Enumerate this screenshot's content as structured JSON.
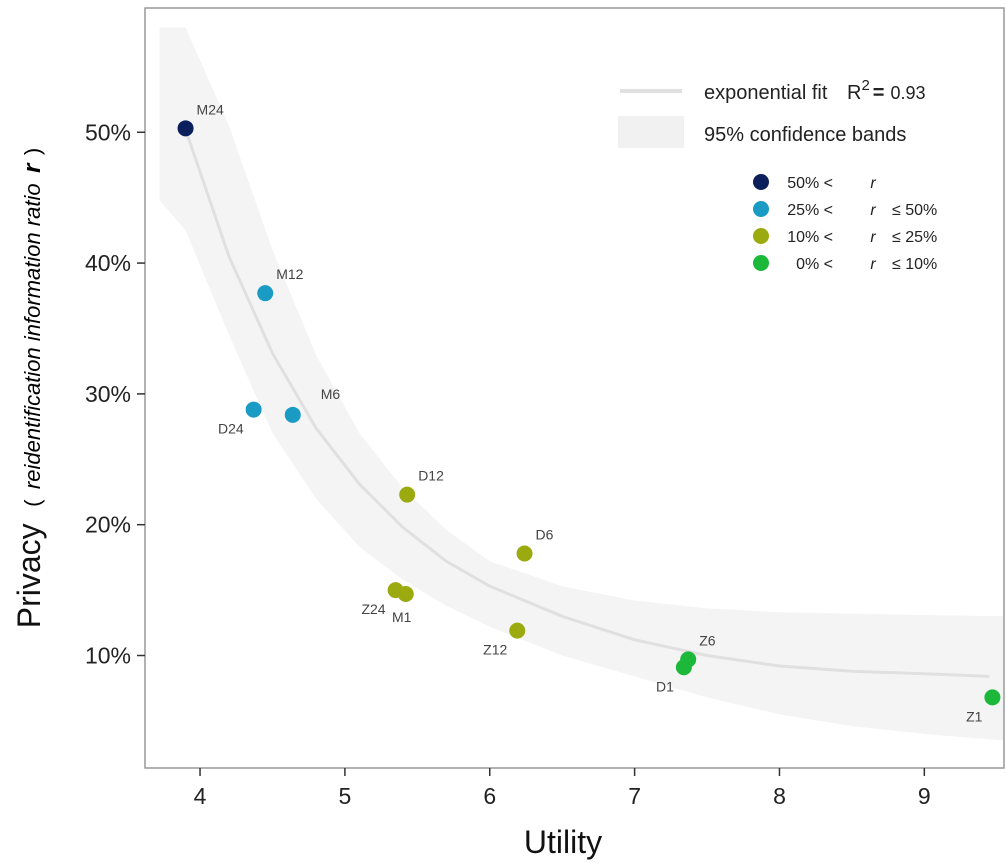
{
  "chart_data": {
    "type": "scatter",
    "title": "",
    "xlabel": "Utility",
    "ylabel_main": "Privacy",
    "ylabel_paren_open": "(",
    "ylabel_italic": "reidentification information ratio",
    "ylabel_bold_r": "r",
    "ylabel_paren_close": ")",
    "xlim": [
      3.62,
      9.55
    ],
    "ylim": [
      0.014,
      0.595
    ],
    "x_ticks": [
      4,
      5,
      6,
      7,
      8,
      9
    ],
    "x_tick_labels": [
      "4",
      "5",
      "6",
      "7",
      "8",
      "9"
    ],
    "y_ticks": [
      0.1,
      0.2,
      0.3,
      0.4,
      0.5
    ],
    "y_tick_labels": [
      "10%",
      "20%",
      "30%",
      "40%",
      "50%"
    ],
    "grid": false,
    "legend_position": "top-right",
    "fit": {
      "name": "exponential fit",
      "r2_label": "R",
      "r2_superscript": "2",
      "r2_equals": "=",
      "r2_value": "0.93",
      "color": "#e0e0e0",
      "x": [
        3.9,
        4.2,
        4.5,
        4.8,
        5.1,
        5.4,
        5.7,
        6.0,
        6.5,
        7.0,
        7.5,
        8.0,
        8.5,
        9.0,
        9.45
      ],
      "y": [
        0.502,
        0.405,
        0.331,
        0.274,
        0.231,
        0.198,
        0.172,
        0.153,
        0.13,
        0.112,
        0.1,
        0.092,
        0.088,
        0.086,
        0.084
      ]
    },
    "band": {
      "name": "95% confidence bands",
      "color": "#f4f4f4",
      "x": [
        3.72,
        3.9,
        4.2,
        4.5,
        4.8,
        5.1,
        5.4,
        5.7,
        6.0,
        6.5,
        7.0,
        7.5,
        8.0,
        8.5,
        9.0,
        9.55
      ],
      "upper": [
        0.58,
        0.58,
        0.505,
        0.41,
        0.33,
        0.27,
        0.228,
        0.196,
        0.172,
        0.153,
        0.142,
        0.136,
        0.133,
        0.132,
        0.131,
        0.13
      ],
      "lower": [
        0.448,
        0.425,
        0.345,
        0.27,
        0.22,
        0.183,
        0.158,
        0.138,
        0.122,
        0.1,
        0.084,
        0.068,
        0.055,
        0.046,
        0.04,
        0.035
      ]
    },
    "classes": [
      {
        "name": "50% < r",
        "prefix": "50%",
        "lt1": "<",
        "r": "r",
        "le": "",
        "suffix": "",
        "color": "#0a1f5c"
      },
      {
        "name": "25% < r ≤ 50%",
        "prefix": "25%",
        "lt1": "<",
        "r": "r",
        "le": "≤",
        "suffix": "50%",
        "color": "#1a9bc4"
      },
      {
        "name": "10% < r ≤ 25%",
        "prefix": "10%",
        "lt1": "<",
        "r": "r",
        "le": "≤",
        "suffix": "25%",
        "color": "#9aaa0f"
      },
      {
        "name": "0% < r ≤ 10%",
        "prefix": "0%",
        "lt1": "<",
        "r": "r",
        "le": "≤",
        "suffix": "10%",
        "color": "#1cb83a"
      }
    ],
    "points": [
      {
        "label": "M24",
        "x": 3.9,
        "y": 0.503,
        "cls": 0,
        "anchor": "ne"
      },
      {
        "label": "M12",
        "x": 4.45,
        "y": 0.377,
        "cls": 1,
        "anchor": "ne"
      },
      {
        "label": "D24",
        "x": 4.37,
        "y": 0.288,
        "cls": 1,
        "anchor": "sw"
      },
      {
        "label": "M6",
        "x": 4.64,
        "y": 0.284,
        "cls": 1,
        "anchor": "ne_far"
      },
      {
        "label": "D12",
        "x": 5.43,
        "y": 0.223,
        "cls": 2,
        "anchor": "ne"
      },
      {
        "label": "D6",
        "x": 6.24,
        "y": 0.178,
        "cls": 2,
        "anchor": "ne"
      },
      {
        "label": "Z24",
        "x": 5.35,
        "y": 0.15,
        "cls": 2,
        "anchor": "sw"
      },
      {
        "label": "M1",
        "x": 5.42,
        "y": 0.147,
        "cls": 2,
        "anchor": "s"
      },
      {
        "label": "Z12",
        "x": 6.19,
        "y": 0.119,
        "cls": 2,
        "anchor": "sw"
      },
      {
        "label": "Z6",
        "x": 7.37,
        "y": 0.097,
        "cls": 3,
        "anchor": "ne"
      },
      {
        "label": "D1",
        "x": 7.34,
        "y": 0.091,
        "cls": 3,
        "anchor": "sw"
      },
      {
        "label": "Z1",
        "x": 9.47,
        "y": 0.068,
        "cls": 3,
        "anchor": "sw"
      }
    ]
  }
}
